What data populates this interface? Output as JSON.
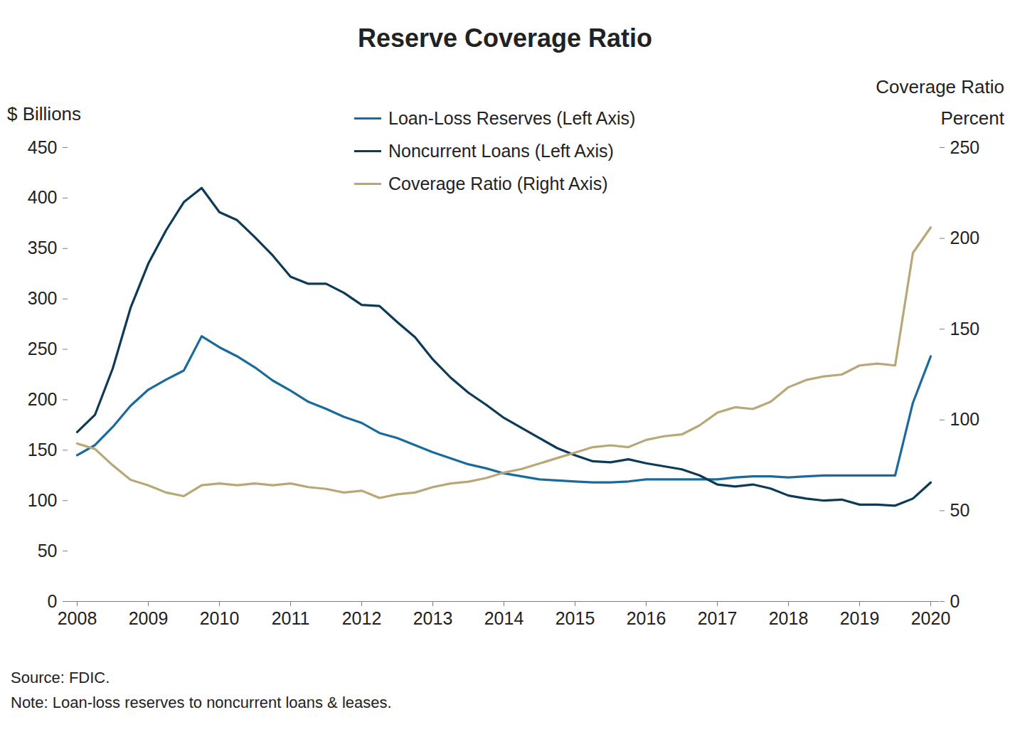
{
  "chart_data": {
    "type": "line",
    "title": "Reserve Coverage Ratio",
    "y_label": "$ Billions",
    "y2_label": "Coverage Ratio\nPercent",
    "categories": [
      "2008",
      null,
      null,
      null,
      "2009",
      null,
      null,
      null,
      "2010",
      null,
      null,
      null,
      "2011",
      null,
      null,
      null,
      "2012",
      null,
      null,
      null,
      "2013",
      null,
      null,
      null,
      "2014",
      null,
      null,
      null,
      "2015",
      null,
      null,
      null,
      "2016",
      null,
      null,
      null,
      "2017",
      null,
      null,
      null,
      "2018",
      null,
      null,
      null,
      "2019",
      null,
      null,
      null,
      "2020"
    ],
    "series": [
      {
        "name": "Loan-Loss Reserves (Left Axis)",
        "color": "#1a6b9c",
        "axis": "y",
        "values": [
          145,
          155,
          173,
          194,
          210,
          220,
          229,
          263,
          252,
          243,
          232,
          219,
          209,
          198,
          191,
          183,
          177,
          167,
          162,
          155,
          148,
          142,
          136,
          132,
          127,
          124,
          121,
          120,
          119,
          118,
          118,
          119,
          121,
          121,
          121,
          121,
          121,
          123,
          124,
          124,
          123,
          124,
          125,
          125,
          125,
          125,
          125,
          197,
          243
        ]
      },
      {
        "name": "Noncurrent Loans (Left Axis)",
        "color": "#0c3a57",
        "axis": "y",
        "values": [
          168,
          185,
          231,
          291,
          335,
          368,
          396,
          410,
          386,
          378,
          361,
          343,
          322,
          315,
          315,
          306,
          294,
          293,
          277,
          262,
          240,
          222,
          207,
          195,
          182,
          172,
          162,
          152,
          145,
          139,
          138,
          141,
          137,
          134,
          131,
          125,
          116,
          114,
          116,
          112,
          105,
          102,
          100,
          101,
          96,
          96,
          95,
          102,
          118
        ]
      },
      {
        "name": "Coverage Ratio (Right Axis)",
        "color": "#b8a878",
        "axis": "y2",
        "values": [
          87,
          84,
          75,
          67,
          64,
          60,
          58,
          64,
          65,
          64,
          65,
          64,
          65,
          63,
          62,
          60,
          61,
          57,
          59,
          60,
          63,
          65,
          66,
          68,
          71,
          73,
          76,
          79,
          82,
          85,
          86,
          85,
          89,
          91,
          92,
          97,
          104,
          107,
          106,
          110,
          118,
          122,
          124,
          125,
          130,
          131,
          130,
          192,
          206
        ]
      }
    ],
    "ylim": [
      0,
      450
    ],
    "yticks": [
      0,
      50,
      100,
      150,
      200,
      250,
      300,
      350,
      400,
      450
    ],
    "y2lim": [
      0,
      250
    ],
    "y2ticks": [
      0,
      50,
      100,
      150,
      200,
      250
    ],
    "grid": false,
    "legend": "top",
    "source": "Source: FDIC.",
    "note": "Note: Loan-loss reserves to noncurrent loans & leases."
  }
}
